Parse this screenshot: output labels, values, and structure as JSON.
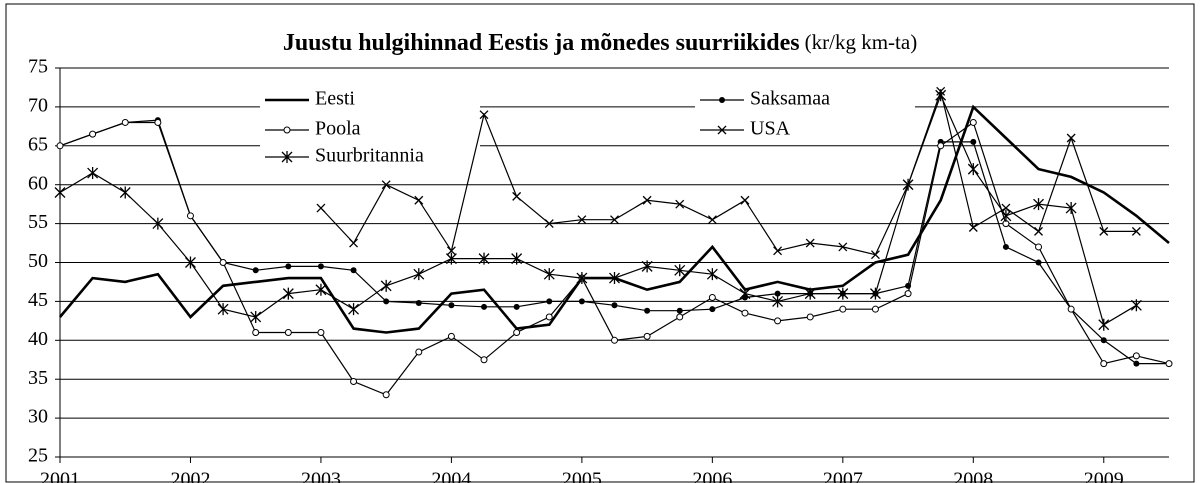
{
  "chart_data": {
    "type": "line",
    "title": "Juustu hulgihinnad Eestis ja mõnedes suurriikides",
    "subtitle": "(kr/kg km-ta)",
    "x": [
      2001,
      2001.25,
      2001.5,
      2001.75,
      2002,
      2002.25,
      2002.5,
      2002.75,
      2003,
      2003.25,
      2003.5,
      2003.75,
      2004,
      2004.25,
      2004.5,
      2004.75,
      2005,
      2005.25,
      2005.5,
      2005.75,
      2006,
      2006.25,
      2006.5,
      2006.75,
      2007,
      2007.25,
      2007.5,
      2007.75,
      2008,
      2008.25,
      2008.5,
      2008.75,
      2009,
      2009.25,
      2009.5
    ],
    "series": [
      {
        "name": "Eesti",
        "color": "#000000",
        "marker": "none",
        "values": [
          43,
          48,
          47.5,
          48.5,
          43,
          47,
          47.5,
          48,
          48,
          41.5,
          41,
          41.5,
          46,
          46.5,
          41.5,
          42,
          48,
          48,
          46.5,
          47.5,
          52,
          46.5,
          47.5,
          46.5,
          47,
          50,
          51,
          58,
          70,
          66,
          62,
          61,
          59,
          56,
          52.5
        ]
      },
      {
        "name": "Saksamaa",
        "color": "#000000",
        "marker": "dot",
        "values": [
          65,
          66.5,
          68,
          68.3,
          56,
          50,
          49,
          49.5,
          49.5,
          49,
          45,
          44.8,
          44.5,
          44.3,
          44.3,
          45,
          45,
          44.5,
          43.8,
          43.8,
          44,
          45.5,
          46,
          46,
          46,
          46,
          47,
          65.5,
          65.5,
          52,
          50,
          44,
          40,
          37,
          37
        ]
      },
      {
        "name": "Poola",
        "color": "#000000",
        "marker": "circle",
        "values": [
          65,
          66.5,
          68,
          68,
          56,
          50,
          41,
          41,
          41,
          34.7,
          33,
          38.5,
          40.5,
          37.5,
          41,
          43,
          48,
          40,
          40.5,
          43,
          45.5,
          43.5,
          42.5,
          43,
          44,
          44,
          46,
          65,
          68,
          55,
          52,
          44,
          37,
          38,
          37
        ]
      },
      {
        "name": "USA",
        "color": "#000000",
        "marker": "x",
        "values": [
          null,
          null,
          null,
          null,
          null,
          null,
          null,
          null,
          57,
          52.5,
          60,
          58,
          51.5,
          69,
          58.5,
          55,
          55.5,
          55.5,
          58,
          57.5,
          55.5,
          58,
          51.5,
          52.5,
          52,
          51,
          60,
          72,
          54.5,
          57,
          54,
          66,
          54,
          54,
          null
        ]
      },
      {
        "name": "Suurbritannia",
        "color": "#000000",
        "marker": "asterisk",
        "values": [
          59,
          61.5,
          59,
          55,
          50,
          44,
          43,
          46,
          46.5,
          44,
          47,
          48.5,
          50.5,
          50.5,
          50.5,
          48.5,
          48,
          48,
          49.5,
          49,
          48.5,
          46,
          45,
          46,
          46,
          46,
          60,
          71.5,
          62,
          56,
          57.5,
          57,
          42,
          44.5,
          null
        ]
      }
    ],
    "xlim": [
      2001,
      2009.5
    ],
    "xticks": [
      2001,
      2002,
      2003,
      2004,
      2005,
      2006,
      2007,
      2008,
      2009
    ],
    "ylim": [
      25,
      75
    ],
    "yticks": [
      25,
      30,
      35,
      40,
      45,
      50,
      55,
      60,
      65,
      70,
      75
    ],
    "grid": true
  }
}
